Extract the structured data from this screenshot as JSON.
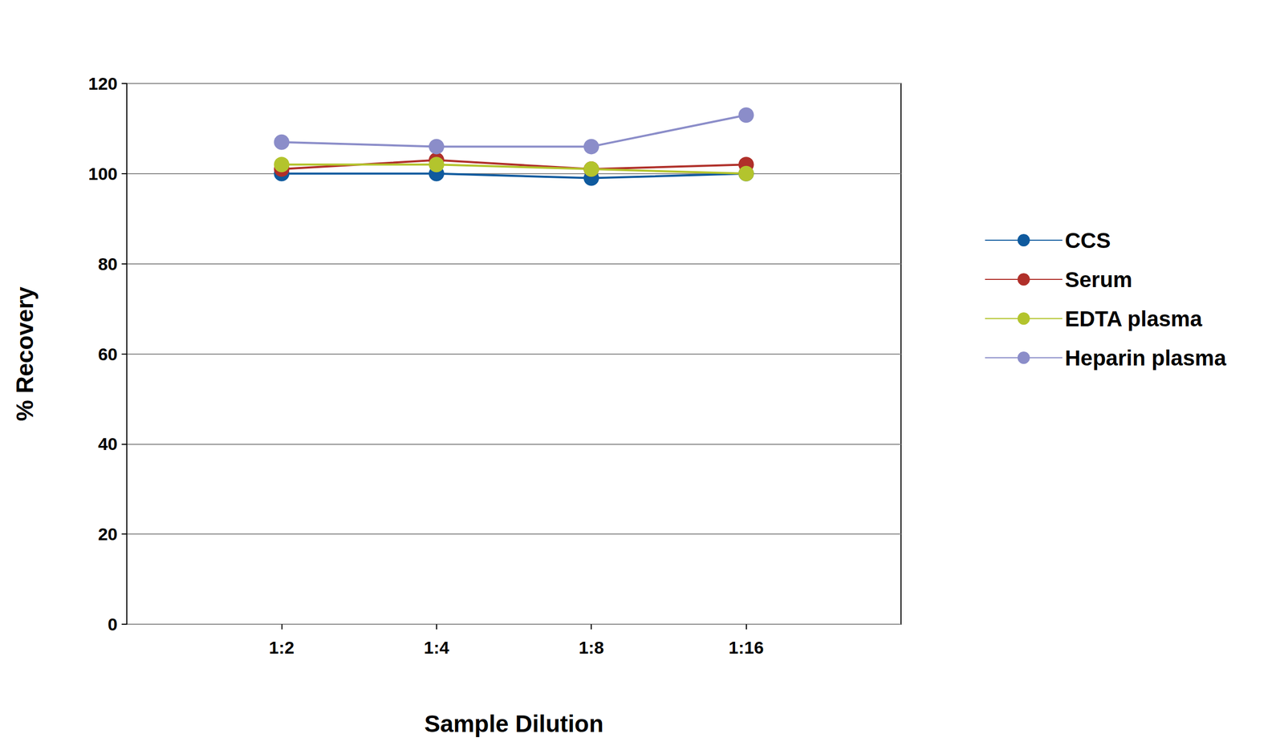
{
  "chart_data": {
    "type": "line",
    "xlabel": "Sample Dilution",
    "ylabel": "% Recovery",
    "categories": [
      "1:2",
      "1:4",
      "1:8",
      "1:16"
    ],
    "series": [
      {
        "name": "CCS",
        "color": "#0f5a9e",
        "values": [
          100,
          100,
          99,
          100
        ]
      },
      {
        "name": "Serum",
        "color": "#b0302a",
        "values": [
          101,
          103,
          101,
          102
        ]
      },
      {
        "name": "EDTA plasma",
        "color": "#b3c42d",
        "values": [
          102,
          102,
          101,
          100
        ]
      },
      {
        "name": "Heparin plasma",
        "color": "#8b8dc9",
        "values": [
          107,
          106,
          106,
          113
        ]
      }
    ],
    "ylim": [
      0,
      120
    ],
    "yticks": [
      0,
      20,
      40,
      60,
      80,
      100,
      120
    ],
    "grid": true,
    "legend": "right",
    "marker": "circle"
  }
}
